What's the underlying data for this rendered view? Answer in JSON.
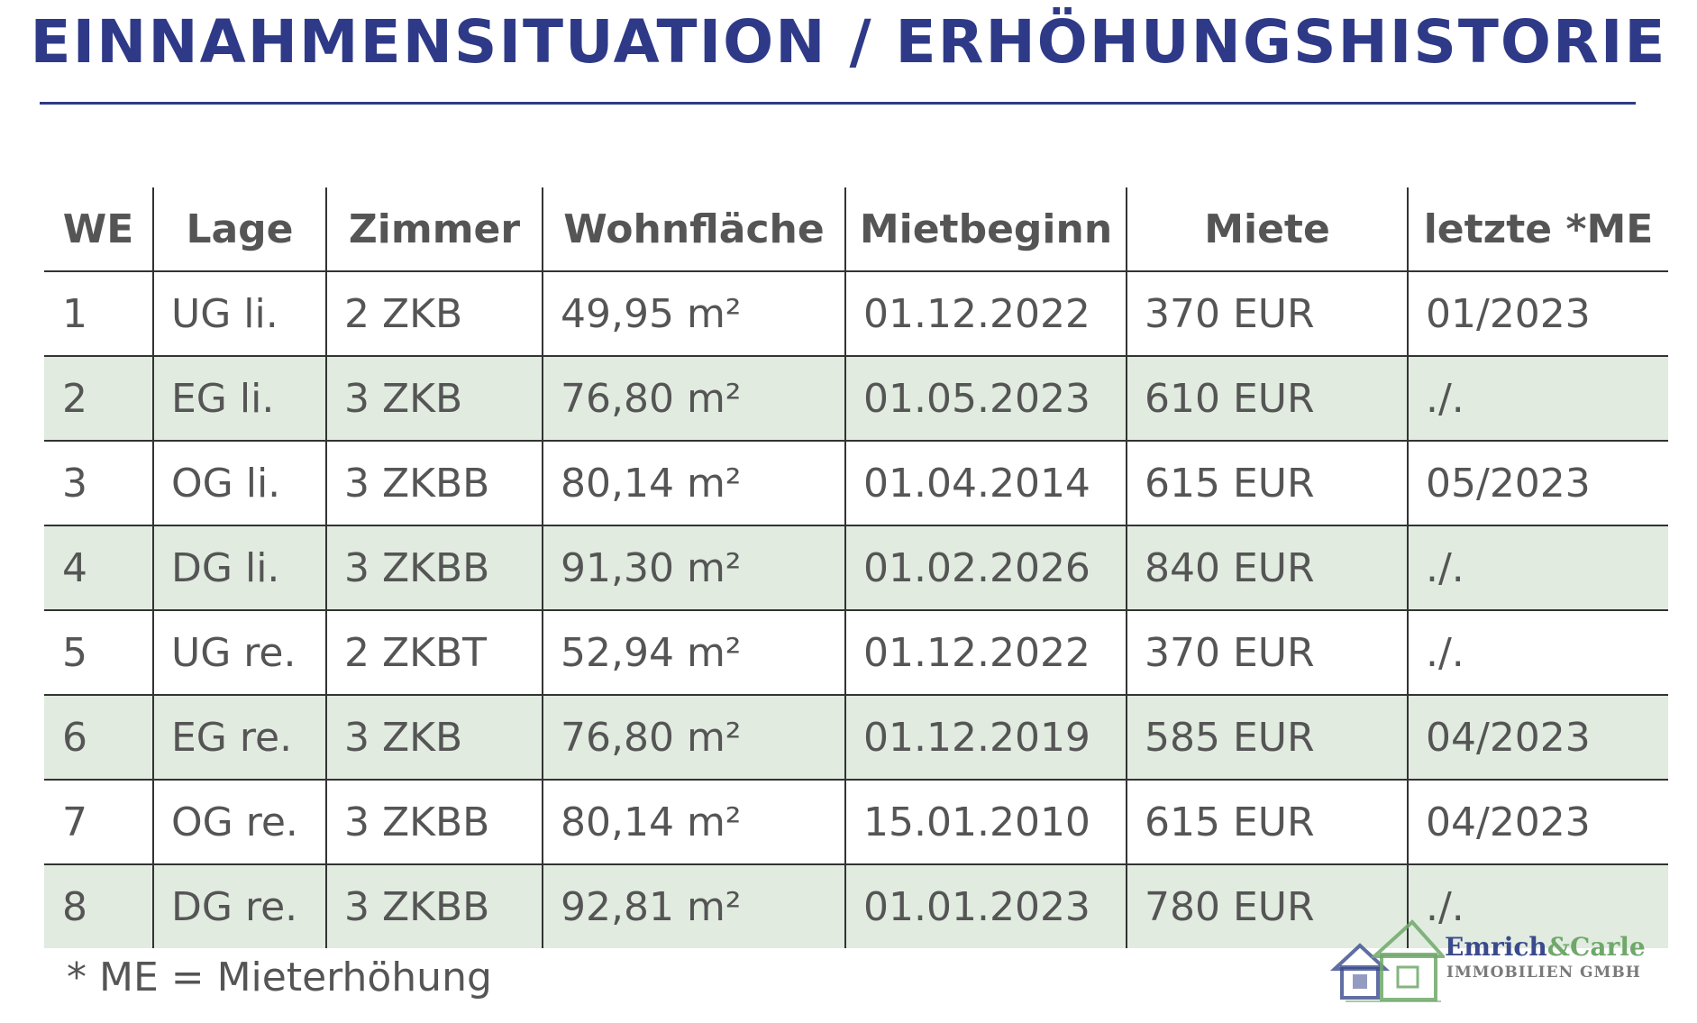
{
  "title": "EINNAHMENSITUATION / ERHÖHUNGSHISTORIE",
  "table": {
    "headers": [
      "WE",
      "Lage",
      "Zimmer",
      "Wohnfläche",
      "Mietbeginn",
      "Miete",
      "letzte *ME"
    ],
    "rows": [
      [
        "1",
        "UG li.",
        "2 ZKB",
        "49,95 m²",
        "01.12.2022",
        "370 EUR",
        "01/2023"
      ],
      [
        "2",
        "EG li.",
        "3 ZKB",
        "76,80 m²",
        "01.05.2023",
        "610 EUR",
        "./."
      ],
      [
        "3",
        "OG li.",
        "3 ZKBB",
        "80,14 m²",
        "01.04.2014",
        "615 EUR",
        "05/2023"
      ],
      [
        "4",
        "DG li.",
        "3 ZKBB",
        "91,30 m²",
        "01.02.2026",
        "840 EUR",
        "./."
      ],
      [
        "5",
        "UG re.",
        "2 ZKBT",
        "52,94 m²",
        "01.12.2022",
        "370 EUR",
        "./."
      ],
      [
        "6",
        "EG re.",
        "3 ZKB",
        "76,80 m²",
        "01.12.2019",
        "585 EUR",
        "04/2023"
      ],
      [
        "7",
        "OG re.",
        "3 ZKBB",
        "80,14 m²",
        "15.01.2010",
        "615 EUR",
        "04/2023"
      ],
      [
        "8",
        "DG re.",
        "3 ZKBB",
        "92,81 m²",
        "01.01.2023",
        "780 EUR",
        "./."
      ]
    ]
  },
  "footnote": "* ME = Mieterhöhung",
  "logo": {
    "name_first": "Emrich",
    "name_amp": "&",
    "name_second": "Carle",
    "subtitle": "IMMOBILIEN GMBH",
    "icon": "houses-logo-icon"
  },
  "colors": {
    "title": "#2e3a87",
    "text": "#555555",
    "row_shade": "#e1ebe0",
    "logo_blue": "#3a4a8c",
    "logo_green": "#6fa86a"
  }
}
